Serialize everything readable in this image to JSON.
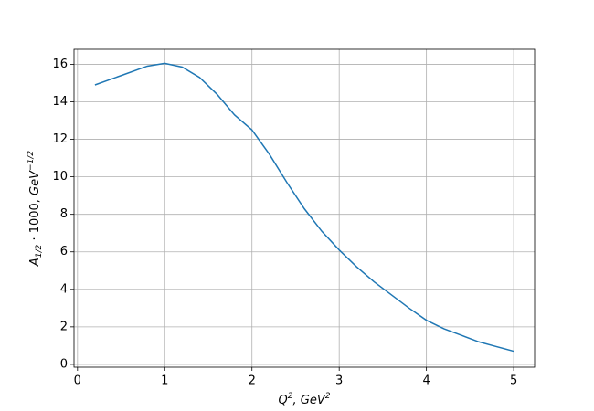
{
  "chart_data": {
    "type": "line",
    "xlabel": [
      "Q",
      "2",
      ", GeV",
      "2"
    ],
    "ylabel": [
      "A",
      "1/2",
      " · 1000, ",
      "GeV",
      "−1/2"
    ],
    "x": [
      0.2,
      0.5,
      0.8,
      1.0,
      1.2,
      1.4,
      1.6,
      1.8,
      2.0,
      2.2,
      2.4,
      2.6,
      2.8,
      3.0,
      3.2,
      3.4,
      3.6,
      3.8,
      4.0,
      4.2,
      4.4,
      4.6,
      4.8,
      5.0
    ],
    "series": [
      {
        "color": "#1f77b4",
        "values": [
          14.9,
          15.4,
          15.9,
          16.05,
          15.85,
          15.3,
          14.4,
          13.3,
          12.5,
          11.2,
          9.7,
          8.3,
          7.1,
          6.1,
          5.2,
          4.4,
          3.7,
          3.0,
          2.35,
          1.9,
          1.55,
          1.2,
          0.95,
          0.7
        ]
      }
    ],
    "xlim": [
      -0.04,
      5.24
    ],
    "ylim": [
      -0.15,
      16.8
    ],
    "xticks": [
      0,
      1,
      2,
      3,
      4,
      5
    ],
    "yticks": [
      0,
      2,
      4,
      6,
      8,
      10,
      12,
      14,
      16
    ],
    "grid": true
  }
}
